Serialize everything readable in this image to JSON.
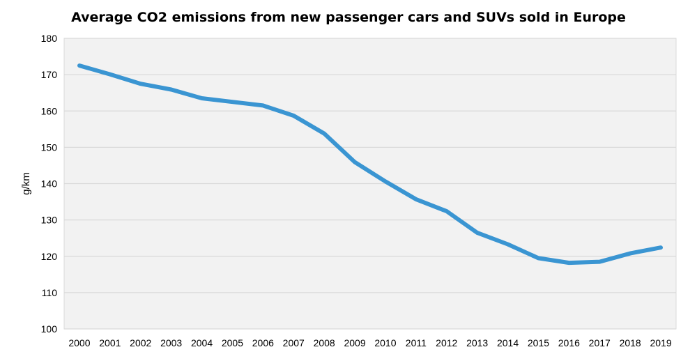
{
  "chart_data": {
    "type": "line",
    "title": "Average CO2 emissions from new passenger cars and SUVs sold in Europe",
    "xlabel": "",
    "ylabel": "g/km",
    "ylim": [
      100,
      180
    ],
    "yticks": [
      100,
      110,
      120,
      130,
      140,
      150,
      160,
      170,
      180
    ],
    "grid": true,
    "legend": "none",
    "x": [
      "2000",
      "2001",
      "2002",
      "2003",
      "2004",
      "2005",
      "2006",
      "2007",
      "2008",
      "2009",
      "2010",
      "2011",
      "2012",
      "2013",
      "2014",
      "2015",
      "2016",
      "2017",
      "2018",
      "2019"
    ],
    "series": [
      {
        "color": "#3a95d2",
        "values": [
          172.5,
          170.1,
          167.5,
          165.9,
          163.5,
          162.5,
          161.5,
          158.7,
          153.8,
          145.9,
          140.6,
          135.7,
          132.4,
          126.5,
          123.3,
          119.5,
          118.2,
          118.5,
          120.8,
          122.4
        ]
      }
    ],
    "colors": {
      "plot_background": "#f2f2f2",
      "gridline": "#d9d9d9",
      "line": "#3a95d2"
    }
  }
}
